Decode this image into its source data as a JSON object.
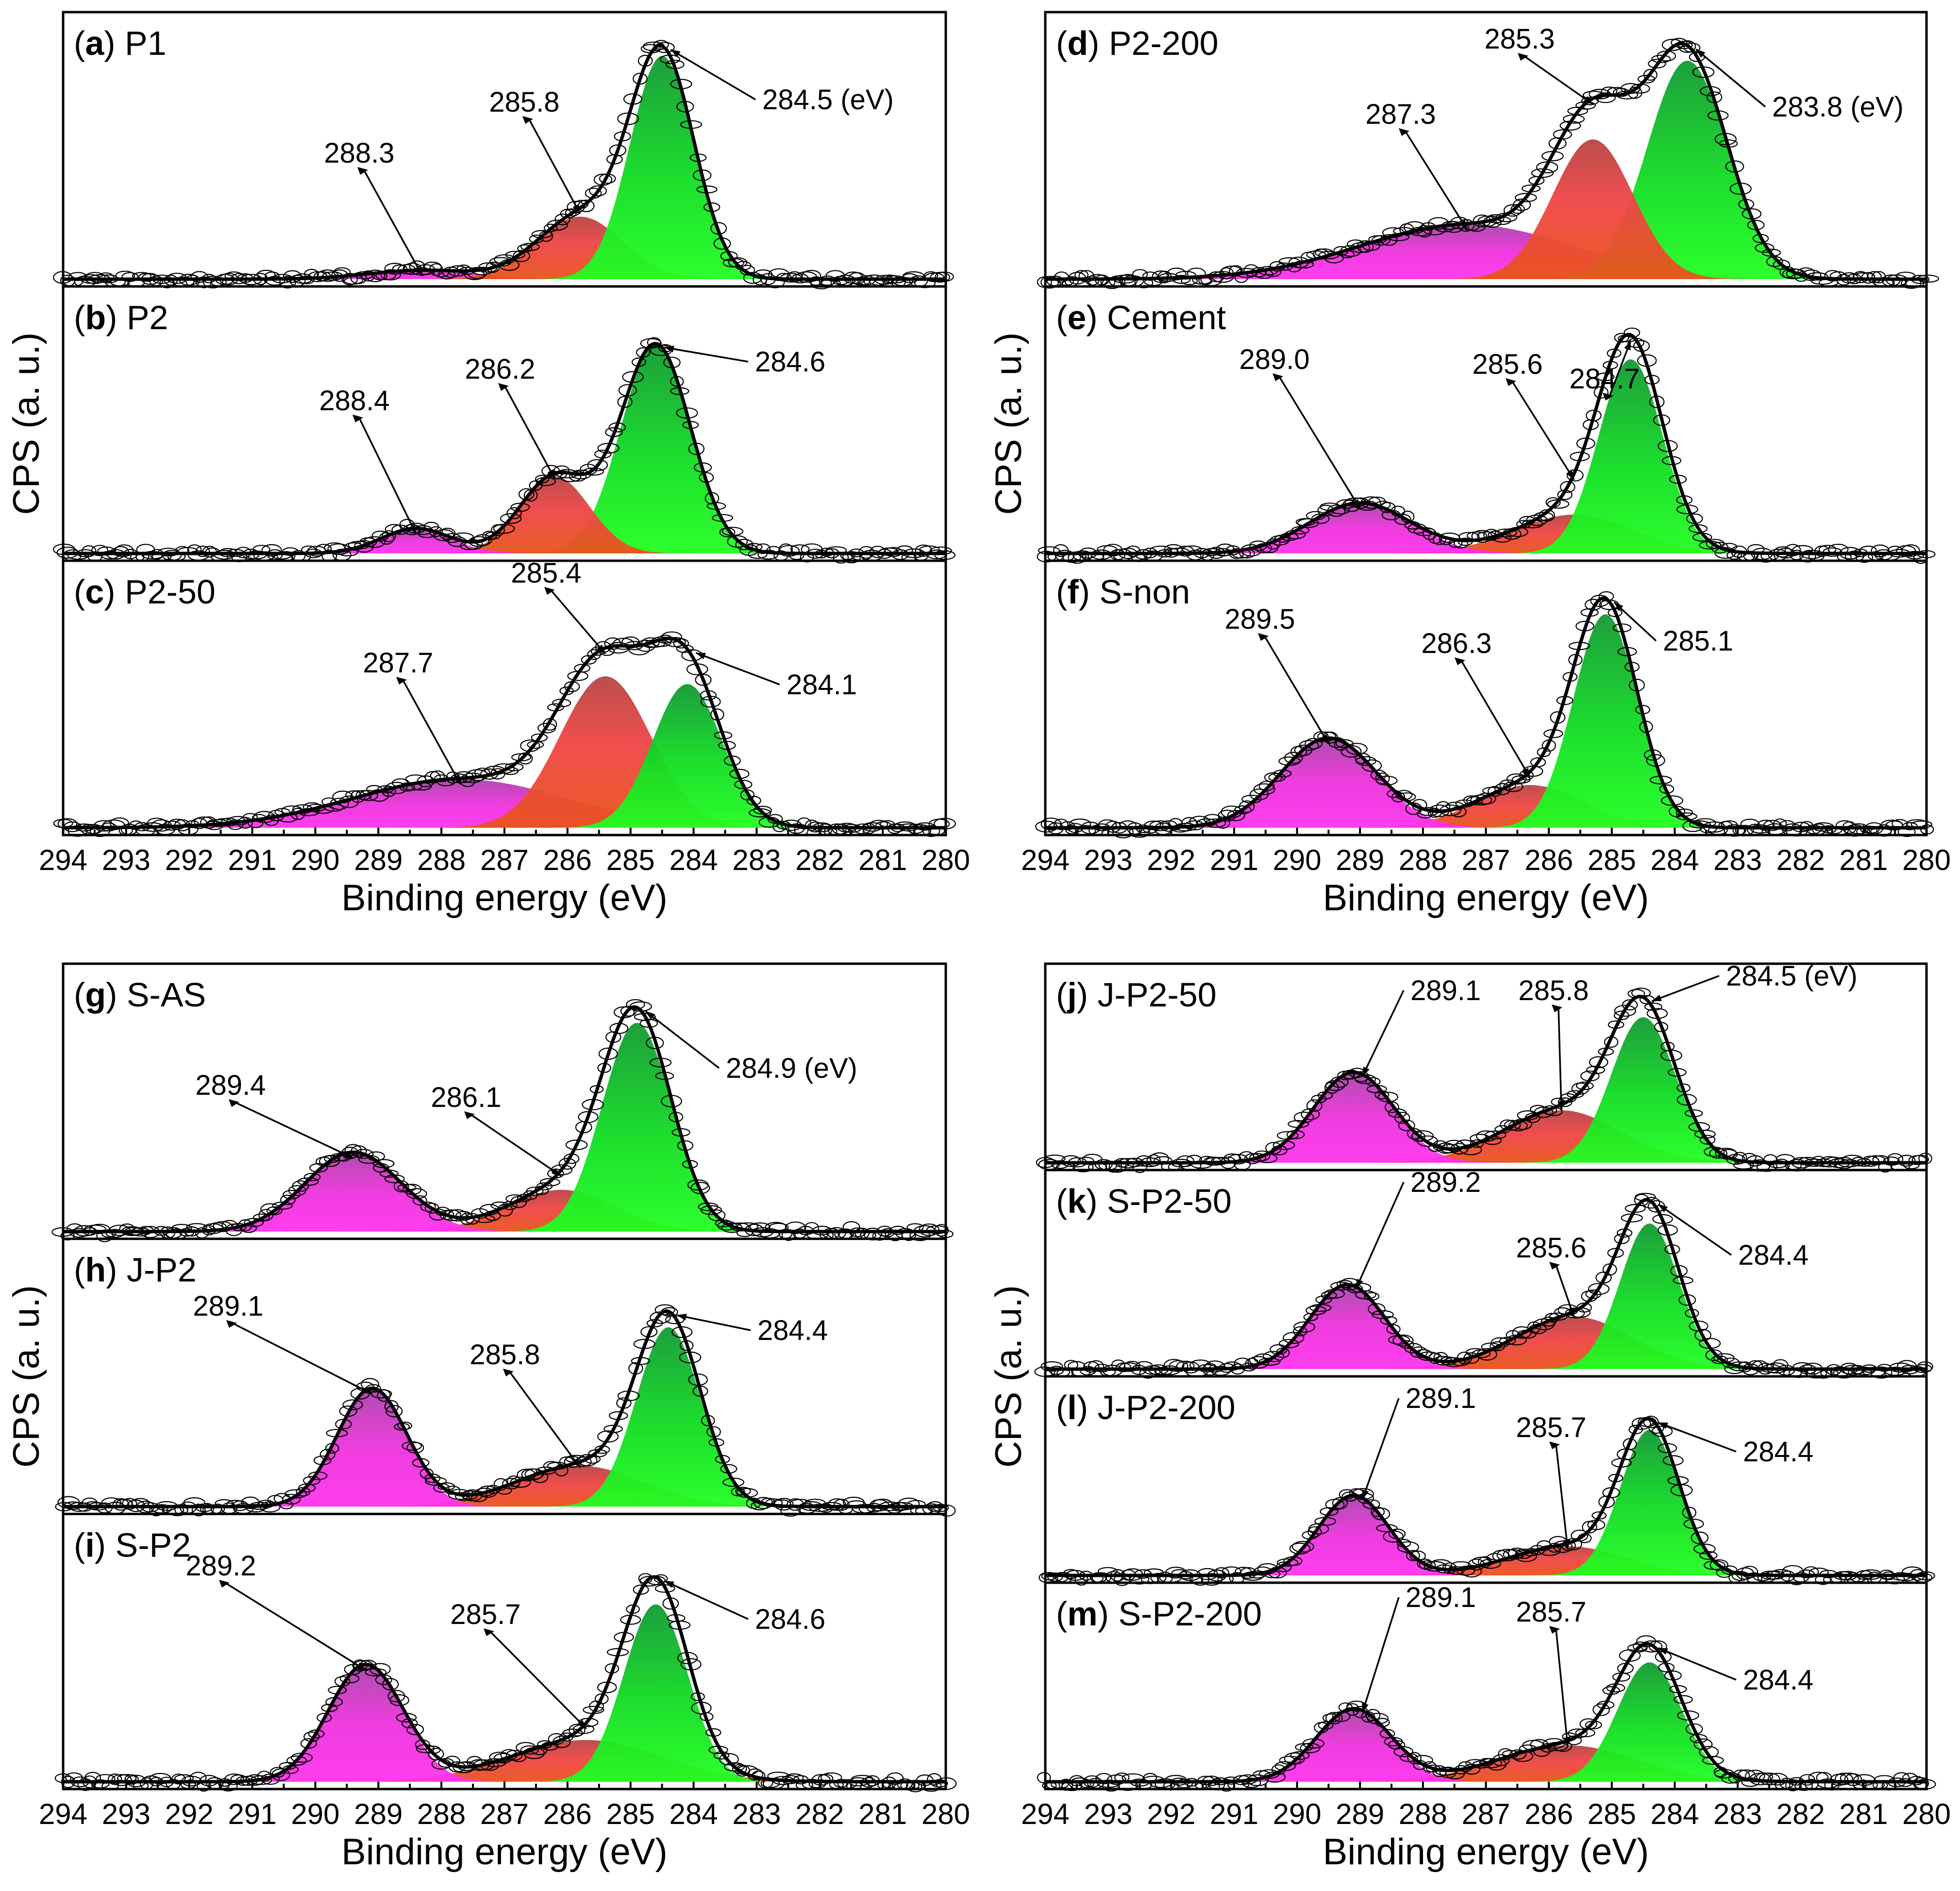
{
  "chart_data": {
    "type": "line",
    "title": "",
    "xlabel": "Binding energy (eV)",
    "ylabel": "CPS (a. u.)",
    "xlim": [
      294,
      280
    ],
    "xticks": [
      "294",
      "293",
      "292",
      "291",
      "290",
      "289",
      "288",
      "287",
      "286",
      "285",
      "284",
      "283",
      "282",
      "281",
      "280"
    ],
    "colors": {
      "magenta": "#ee33dd",
      "red": "#f04545",
      "green": "#11dd22",
      "orange": "#e8541a"
    },
    "panels": [
      {
        "id": "a",
        "name": "P1",
        "group": 0,
        "label_letter": "a",
        "label_text": " P1",
        "peaks": [
          {
            "center": 284.5,
            "label": "284.5 (eV)",
            "height": 1.0,
            "fwhm": 1.2,
            "color": "green"
          },
          {
            "center": 285.8,
            "label": "285.8",
            "height": 0.28,
            "fwhm": 1.6,
            "color": "red"
          },
          {
            "center": 288.3,
            "label": "288.3",
            "height": 0.04,
            "fwhm": 2.0,
            "color": "magenta"
          }
        ]
      },
      {
        "id": "b",
        "name": "P2",
        "group": 0,
        "label_letter": "b",
        "label_text": " P2",
        "peaks": [
          {
            "center": 284.6,
            "label": "284.6",
            "height": 1.0,
            "fwhm": 1.3,
            "color": "green"
          },
          {
            "center": 286.2,
            "label": "286.2",
            "height": 0.37,
            "fwhm": 1.3,
            "color": "red"
          },
          {
            "center": 288.4,
            "label": "288.4",
            "height": 0.12,
            "fwhm": 1.3,
            "color": "magenta"
          }
        ]
      },
      {
        "id": "c",
        "name": "P2-50",
        "group": 0,
        "label_letter": "c",
        "label_text": " P2-50",
        "peaks": [
          {
            "center": 284.1,
            "label": "284.1",
            "height": 0.74,
            "fwhm": 1.3,
            "color": "green"
          },
          {
            "center": 285.4,
            "label": "285.4",
            "height": 0.78,
            "fwhm": 1.7,
            "color": "red"
          },
          {
            "center": 287.7,
            "label": "287.7",
            "height": 0.25,
            "fwhm": 4.0,
            "color": "magenta"
          }
        ]
      },
      {
        "id": "d",
        "name": "P2-200",
        "group": 1,
        "label_letter": "d",
        "label_text": " P2-200",
        "peaks": [
          {
            "center": 283.8,
            "label": "283.8 (eV)",
            "height": 1.0,
            "fwhm": 1.5,
            "color": "green"
          },
          {
            "center": 285.3,
            "label": "285.3",
            "height": 0.64,
            "fwhm": 1.5,
            "color": "red"
          },
          {
            "center": 287.3,
            "label": "287.3",
            "height": 0.25,
            "fwhm": 4.0,
            "color": "magenta"
          }
        ]
      },
      {
        "id": "e",
        "name": "Cement",
        "group": 1,
        "label_letter": "e",
        "label_text": " Cement",
        "peaks": [
          {
            "center": 284.7,
            "label": "284.7",
            "height": 1.0,
            "fwhm": 1.2,
            "color": "green"
          },
          {
            "center": 285.6,
            "label": "285.6",
            "height": 0.2,
            "fwhm": 2.2,
            "color": "red"
          },
          {
            "center": 289.0,
            "label": "289.0",
            "height": 0.26,
            "fwhm": 1.9,
            "color": "magenta"
          }
        ]
      },
      {
        "id": "f",
        "name": "S-non",
        "group": 1,
        "label_letter": "f",
        "label_text": " S-non",
        "peaks": [
          {
            "center": 285.1,
            "label": "285.1",
            "height": 1.0,
            "fwhm": 1.2,
            "color": "green"
          },
          {
            "center": 286.3,
            "label": "286.3",
            "height": 0.2,
            "fwhm": 2.0,
            "color": "red"
          },
          {
            "center": 289.5,
            "label": "289.5",
            "height": 0.42,
            "fwhm": 1.8,
            "color": "magenta"
          }
        ]
      },
      {
        "id": "g",
        "name": "S-AS",
        "group": 2,
        "label_letter": "g",
        "label_text": " S-AS",
        "peaks": [
          {
            "center": 284.9,
            "label": "284.9 (eV)",
            "height": 1.0,
            "fwhm": 1.3,
            "color": "green"
          },
          {
            "center": 286.1,
            "label": "286.1",
            "height": 0.2,
            "fwhm": 2.0,
            "color": "red"
          },
          {
            "center": 289.4,
            "label": "289.4",
            "height": 0.38,
            "fwhm": 1.8,
            "color": "magenta"
          }
        ]
      },
      {
        "id": "h",
        "name": "J-P2",
        "group": 2,
        "label_letter": "h",
        "label_text": " J-P2",
        "peaks": [
          {
            "center": 284.4,
            "label": "284.4",
            "height": 0.88,
            "fwhm": 1.2,
            "color": "green"
          },
          {
            "center": 285.8,
            "label": "285.8",
            "height": 0.2,
            "fwhm": 2.4,
            "color": "red"
          },
          {
            "center": 289.1,
            "label": "289.1",
            "height": 0.58,
            "fwhm": 1.3,
            "color": "magenta"
          }
        ]
      },
      {
        "id": "i",
        "name": "S-P2",
        "group": 2,
        "label_letter": "i",
        "label_text": " S-P2",
        "peaks": [
          {
            "center": 284.6,
            "label": "284.6",
            "height": 0.85,
            "fwhm": 1.2,
            "color": "green"
          },
          {
            "center": 285.7,
            "label": "285.7",
            "height": 0.2,
            "fwhm": 2.8,
            "color": "red"
          },
          {
            "center": 289.2,
            "label": "289.2",
            "height": 0.56,
            "fwhm": 1.4,
            "color": "magenta"
          }
        ]
      },
      {
        "id": "j",
        "name": "J-P2-50",
        "group": 3,
        "label_letter": "j",
        "label_text": " J-P2-50",
        "peaks": [
          {
            "center": 284.5,
            "label": "284.5 (eV)",
            "height": 1.0,
            "fwhm": 1.2,
            "color": "green"
          },
          {
            "center": 285.8,
            "label": "285.8",
            "height": 0.36,
            "fwhm": 2.2,
            "color": "red"
          },
          {
            "center": 289.1,
            "label": "289.1",
            "height": 0.62,
            "fwhm": 1.5,
            "color": "magenta"
          }
        ]
      },
      {
        "id": "k",
        "name": "S-P2-50",
        "group": 3,
        "label_letter": "k",
        "label_text": " S-P2-50",
        "peaks": [
          {
            "center": 284.4,
            "label": "284.4",
            "height": 1.0,
            "fwhm": 1.1,
            "color": "green"
          },
          {
            "center": 285.6,
            "label": "285.6",
            "height": 0.36,
            "fwhm": 2.2,
            "color": "red"
          },
          {
            "center": 289.2,
            "label": "289.2",
            "height": 0.58,
            "fwhm": 1.4,
            "color": "magenta"
          }
        ]
      },
      {
        "id": "l",
        "name": "J-P2-200",
        "group": 3,
        "label_letter": "l",
        "label_text": " J-P2-200",
        "peaks": [
          {
            "center": 284.4,
            "label": "284.4",
            "height": 1.0,
            "fwhm": 1.1,
            "color": "green"
          },
          {
            "center": 285.7,
            "label": "285.7",
            "height": 0.2,
            "fwhm": 2.2,
            "color": "red"
          },
          {
            "center": 289.1,
            "label": "289.1",
            "height": 0.55,
            "fwhm": 1.3,
            "color": "magenta"
          }
        ]
      },
      {
        "id": "m",
        "name": "S-P2-200",
        "group": 3,
        "label_letter": "m",
        "label_text": " S-P2-200",
        "peaks": [
          {
            "center": 284.4,
            "label": "284.4",
            "height": 0.82,
            "fwhm": 1.2,
            "color": "green"
          },
          {
            "center": 285.7,
            "label": "285.7",
            "height": 0.25,
            "fwhm": 2.6,
            "color": "red"
          },
          {
            "center": 289.1,
            "label": "289.1",
            "height": 0.5,
            "fwhm": 1.4,
            "color": "magenta"
          }
        ]
      }
    ]
  }
}
